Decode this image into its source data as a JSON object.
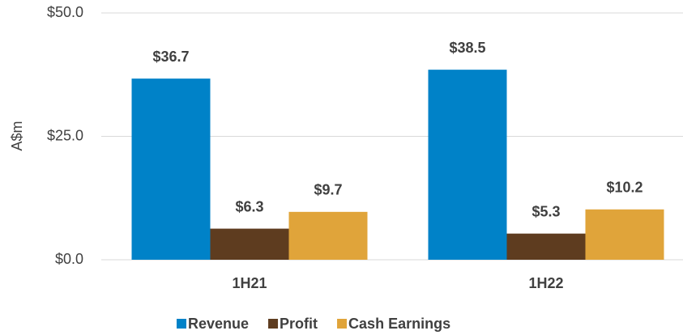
{
  "chart_data": {
    "type": "bar",
    "y_label": "A$m",
    "categories": [
      "1H21",
      "1H22"
    ],
    "series": [
      {
        "name": "Revenue",
        "color": "#0082c8",
        "values": [
          36.7,
          38.5
        ],
        "value_labels": [
          "$36.7",
          "$38.5"
        ]
      },
      {
        "name": "Profit",
        "color": "#5e3c1f",
        "values": [
          6.3,
          5.3
        ],
        "value_labels": [
          "$6.3",
          "$5.3"
        ]
      },
      {
        "name": "Cash Earnings",
        "color": "#e0a43a",
        "values": [
          9.7,
          10.2
        ],
        "value_labels": [
          "$9.7",
          "$10.2"
        ]
      }
    ],
    "ylim": [
      0,
      50
    ],
    "yticks": [
      {
        "value": 0,
        "label": "$0.0"
      },
      {
        "value": 25,
        "label": "$25.0"
      },
      {
        "value": 50,
        "label": "$50.0"
      }
    ],
    "grid": true,
    "legend": "bottom"
  }
}
